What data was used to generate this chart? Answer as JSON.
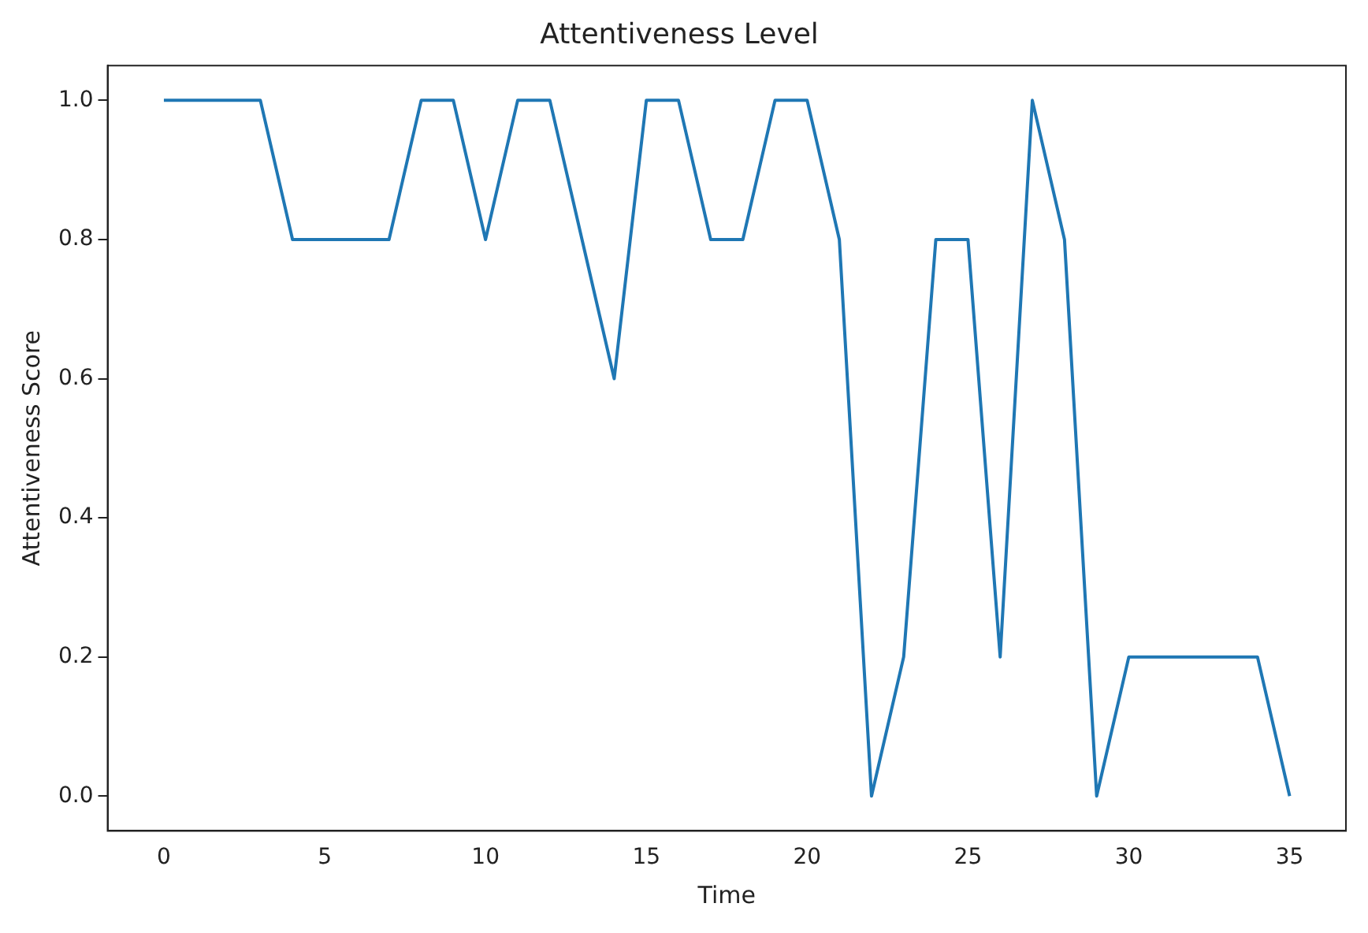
{
  "chart_data": {
    "type": "line",
    "title": "Attentiveness Level",
    "xlabel": "Time",
    "ylabel": "Attentiveness Score",
    "x": [
      0,
      1,
      2,
      3,
      4,
      5,
      6,
      7,
      8,
      9,
      10,
      11,
      12,
      13,
      14,
      15,
      16,
      17,
      18,
      19,
      20,
      21,
      22,
      23,
      24,
      25,
      26,
      27,
      28,
      29,
      30,
      31,
      32,
      33,
      34,
      35
    ],
    "series": [
      {
        "color": "#1f77b4",
        "values": [
          1,
          1,
          1,
          1,
          0.8,
          0.8,
          0.8,
          0.8,
          1,
          1,
          0.8,
          1,
          1,
          0.8,
          0.6,
          1,
          1,
          0.8,
          0.8,
          1,
          1,
          0.8,
          0,
          0.2,
          0.8,
          0.8,
          0.2,
          1,
          0.8,
          0,
          0.2,
          0.2,
          0.2,
          0.2,
          0.2,
          0
        ]
      }
    ],
    "xlim": [
      -1.75,
      36.75
    ],
    "ylim": [
      -0.05,
      1.05
    ],
    "xticks": [
      0,
      5,
      10,
      15,
      20,
      25,
      30,
      35
    ],
    "yticks": [
      {
        "value": 0,
        "label": "0.0"
      },
      {
        "value": 0.2,
        "label": "0.2"
      },
      {
        "value": 0.4,
        "label": "0.4"
      },
      {
        "value": 0.6,
        "label": "0.6"
      },
      {
        "value": 0.8,
        "label": "0.8"
      },
      {
        "value": 1,
        "label": "1.0"
      }
    ],
    "grid": false,
    "legend": false,
    "marker": "none",
    "line_style": "solid"
  }
}
